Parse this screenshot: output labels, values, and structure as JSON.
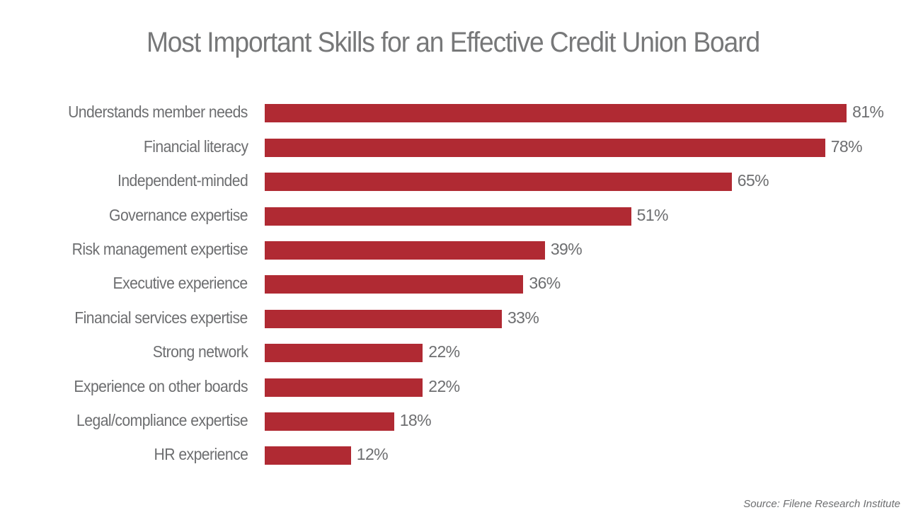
{
  "chart_data": {
    "type": "bar",
    "orientation": "horizontal",
    "title": "Most Important Skills for an Effective Credit Union Board",
    "categories": [
      "Understands member needs",
      "Financial literacy",
      "Independent-minded",
      "Governance expertise",
      "Risk management expertise",
      "Executive experience",
      "Financial services expertise",
      "Strong network",
      "Experience on other boards",
      "Legal/compliance expertise",
      "HR experience"
    ],
    "values": [
      81,
      78,
      65,
      51,
      39,
      36,
      33,
      22,
      22,
      18,
      12
    ],
    "value_labels": [
      "81%",
      "78%",
      "65%",
      "51%",
      "39%",
      "36%",
      "33%",
      "22%",
      "22%",
      "18%",
      "12%"
    ],
    "xlabel": "",
    "ylabel": "",
    "xlim": [
      0,
      100
    ],
    "grid": false,
    "legend": "none",
    "bar_color": "#b02a33",
    "source": "Source: Filene Research Institute"
  }
}
